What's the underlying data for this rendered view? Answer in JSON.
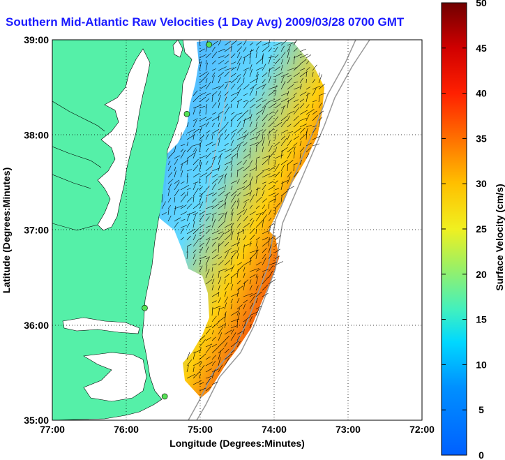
{
  "title": "Southern Mid-Atlantic Raw Velocities (1 Day Avg) 2009/03/28 0700 GMT",
  "axes": {
    "xlabel": "Longitude (Degrees:Minutes)",
    "ylabel": "Latitude (Degrees:Minutes)",
    "xticks": [
      "77:00",
      "76:00",
      "75:00",
      "74:00",
      "73:00",
      "72:00"
    ],
    "yticks": [
      "39:00",
      "38:00",
      "37:00",
      "36:00",
      "35:00"
    ],
    "xlim": [
      -77,
      -72
    ],
    "ylim": [
      35,
      39
    ]
  },
  "colorbar": {
    "label": "Surface Velocity (cm/s)",
    "ticks": [
      "0",
      "5",
      "10",
      "15",
      "20",
      "25",
      "30",
      "35",
      "40",
      "45",
      "50"
    ],
    "range": [
      0,
      50
    ]
  },
  "colors": {
    "land": "#55f0a8",
    "title": "#1a1aff",
    "station": "#55e055"
  },
  "stations": [
    {
      "lon": -74.88,
      "lat": 38.95
    },
    {
      "lon": -75.18,
      "lat": 38.22
    },
    {
      "lon": -75.75,
      "lat": 36.18
    },
    {
      "lon": -75.48,
      "lat": 35.25
    }
  ]
}
